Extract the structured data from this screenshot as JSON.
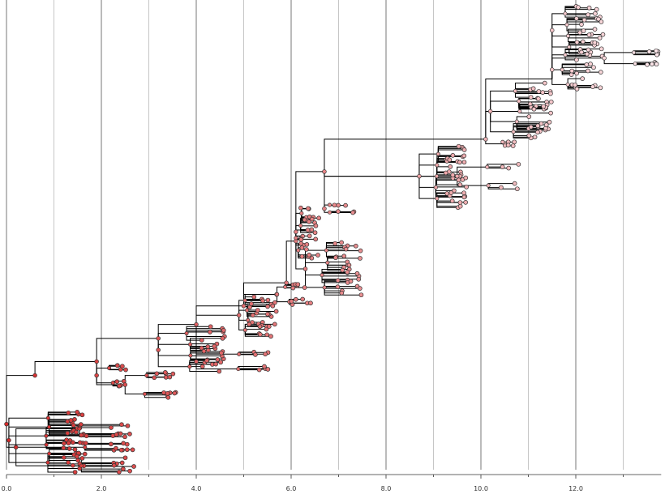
{
  "chart_data": {
    "type": "phylogenetic-tree",
    "title": "",
    "xlabel": "",
    "ylabel": "",
    "xlim": [
      0,
      13.8
    ],
    "x_ticks": [
      {
        "value": 0,
        "label": "0.0"
      },
      {
        "value": 2,
        "label": "2.0"
      },
      {
        "value": 4,
        "label": "4.0"
      },
      {
        "value": 6,
        "label": "6.0"
      },
      {
        "value": 8,
        "label": "8.0"
      },
      {
        "value": 10,
        "label": "10.0"
      },
      {
        "value": 12,
        "label": "12.0"
      }
    ],
    "minor_grid": [
      1,
      3,
      5,
      7,
      9,
      11,
      13
    ],
    "grid": true,
    "color_scale": [
      "#d42a2a",
      "#fbe6ea"
    ],
    "color_encoding": "node color shifts from red to pale pink with increasing time",
    "clades": [
      {
        "root_x": 0.05,
        "y_center": 0.94,
        "x_range": [
          1.2,
          1.7
        ],
        "spread": 0.06,
        "tips": 44
      },
      {
        "root_x": 0.2,
        "y_center": 0.955,
        "x_range": [
          2.2,
          2.7
        ],
        "spread": 0.05,
        "tips": 26
      },
      {
        "root_x": 1.9,
        "y_center": 0.8,
        "x_range": [
          2.3,
          2.6
        ],
        "spread": 0.02,
        "tips": 10
      },
      {
        "root_x": 2.5,
        "y_center": 0.82,
        "x_range": [
          3.1,
          3.6
        ],
        "spread": 0.025,
        "tips": 14
      },
      {
        "root_x": 3.2,
        "y_center": 0.745,
        "x_range": [
          4.1,
          4.6
        ],
        "spread": 0.045,
        "tips": 28
      },
      {
        "root_x": 4.0,
        "y_center": 0.77,
        "x_range": [
          5.2,
          5.6
        ],
        "spread": 0.02,
        "tips": 8
      },
      {
        "root_x": 4.9,
        "y_center": 0.67,
        "x_range": [
          5.1,
          5.7
        ],
        "spread": 0.04,
        "tips": 30
      },
      {
        "root_x": 5.7,
        "y_center": 0.625,
        "x_range": [
          6.0,
          6.5
        ],
        "spread": 0.02,
        "tips": 12
      },
      {
        "root_x": 6.3,
        "y_center": 0.57,
        "x_range": [
          6.9,
          7.5
        ],
        "spread": 0.05,
        "tips": 30
      },
      {
        "root_x": 6.1,
        "y_center": 0.49,
        "x_range": [
          6.2,
          6.6
        ],
        "spread": 0.05,
        "tips": 32
      },
      {
        "root_x": 6.7,
        "y_center": 0.44,
        "x_range": [
          6.9,
          7.4
        ],
        "spread": 0.01,
        "tips": 6
      },
      {
        "root_x": 8.7,
        "y_center": 0.37,
        "x_range": [
          9.2,
          9.7
        ],
        "spread": 0.06,
        "tips": 40
      },
      {
        "root_x": 9.5,
        "y_center": 0.37,
        "x_range": [
          10.4,
          10.8
        ],
        "spread": 0.025,
        "tips": 6
      },
      {
        "root_x": 10.2,
        "y_center": 0.23,
        "x_range": [
          11.0,
          11.5
        ],
        "spread": 0.055,
        "tips": 38
      },
      {
        "root_x": 10.5,
        "y_center": 0.3,
        "x_range": [
          10.5,
          10.8
        ],
        "spread": 0.005,
        "tips": 4
      },
      {
        "root_x": 11.5,
        "y_center": 0.14,
        "x_range": [
          11.9,
          12.6
        ],
        "spread": 0.04,
        "tips": 24
      },
      {
        "root_x": 11.5,
        "y_center": 0.055,
        "x_range": [
          12.0,
          12.6
        ],
        "spread": 0.045,
        "tips": 28
      },
      {
        "root_x": 12.6,
        "y_center": 0.115,
        "x_range": [
          13.5,
          13.75
        ],
        "spread": 0.015,
        "tips": 10
      }
    ],
    "backbone": [
      {
        "x": 0.0,
        "y": 0.905
      },
      {
        "x": 0.6,
        "y": 0.8
      },
      {
        "x": 1.9,
        "y": 0.77
      },
      {
        "x": 3.2,
        "y": 0.72
      },
      {
        "x": 4.0,
        "y": 0.69
      },
      {
        "x": 5.0,
        "y": 0.65
      },
      {
        "x": 5.9,
        "y": 0.6
      },
      {
        "x": 6.1,
        "y": 0.51
      },
      {
        "x": 6.7,
        "y": 0.36
      },
      {
        "x": 10.1,
        "y": 0.29
      },
      {
        "x": 11.5,
        "y": 0.16
      }
    ]
  }
}
